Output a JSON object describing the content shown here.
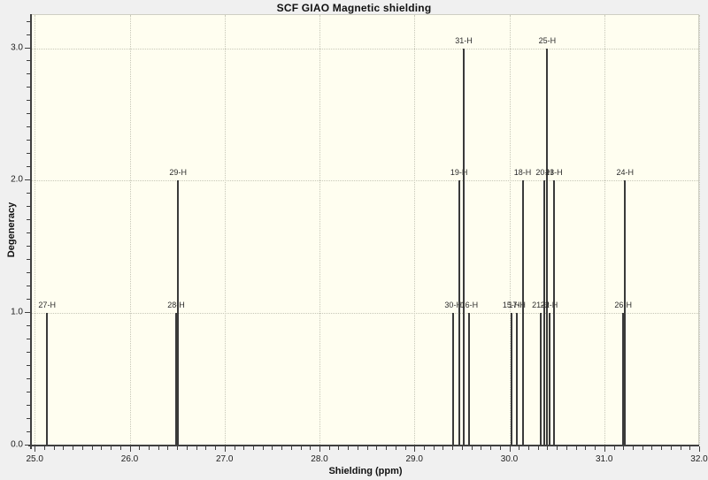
{
  "window": {
    "background": "#f0f0f0"
  },
  "chart_data": {
    "type": "stem",
    "title": "SCF GIAO Magnetic shielding",
    "xlabel": "Shielding (ppm)",
    "ylabel": "Degeneracy",
    "xlim": [
      24.97,
      32.0
    ],
    "ylim": [
      0.0,
      3.25
    ],
    "x_ticks": [
      25.0,
      26.0,
      27.0,
      28.0,
      29.0,
      30.0,
      31.0,
      32.0
    ],
    "x_tick_labels": [
      "25.0",
      "26.0",
      "27.0",
      "28.0",
      "29.0",
      "30.0",
      "31.0",
      "32.0"
    ],
    "x_minor_step": 0.1,
    "y_ticks": [
      0.0,
      1.0,
      2.0,
      3.0
    ],
    "y_tick_labels": [
      "0.0",
      "1.0",
      "2.0",
      "3.0"
    ],
    "y_minor_step": 0.1,
    "grid": "dotted lines at major ticks, both axes",
    "legend": "none",
    "plot_background": "#fffef0",
    "grid_color": "#c7c7b8",
    "stem_color": "#3a3a3a",
    "points": [
      {
        "label": "27-H",
        "shielding": 25.13,
        "degeneracy": 1
      },
      {
        "label": "28-H",
        "shielding": 26.49,
        "degeneracy": 1
      },
      {
        "label": "29-H",
        "shielding": 26.51,
        "degeneracy": 2
      },
      {
        "label": "30-H",
        "shielding": 29.41,
        "degeneracy": 1
      },
      {
        "label": "19-H",
        "shielding": 29.47,
        "degeneracy": 2
      },
      {
        "label": "31-H",
        "shielding": 29.52,
        "degeneracy": 3
      },
      {
        "label": "16-H",
        "shielding": 29.58,
        "degeneracy": 1
      },
      {
        "label": "15-H",
        "shielding": 30.02,
        "degeneracy": 1
      },
      {
        "label": "17-H",
        "shielding": 30.08,
        "degeneracy": 1
      },
      {
        "label": "18-H",
        "shielding": 30.14,
        "degeneracy": 2
      },
      {
        "label": "21-H",
        "shielding": 30.33,
        "degeneracy": 1
      },
      {
        "label": "20-H",
        "shielding": 30.37,
        "degeneracy": 2
      },
      {
        "label": "25-H",
        "shielding": 30.4,
        "degeneracy": 3
      },
      {
        "label": "22-H",
        "shielding": 30.42,
        "degeneracy": 1
      },
      {
        "label": "23-H",
        "shielding": 30.47,
        "degeneracy": 2
      },
      {
        "label": "26-H",
        "shielding": 31.2,
        "degeneracy": 1
      },
      {
        "label": "24-H",
        "shielding": 31.22,
        "degeneracy": 2
      }
    ]
  }
}
